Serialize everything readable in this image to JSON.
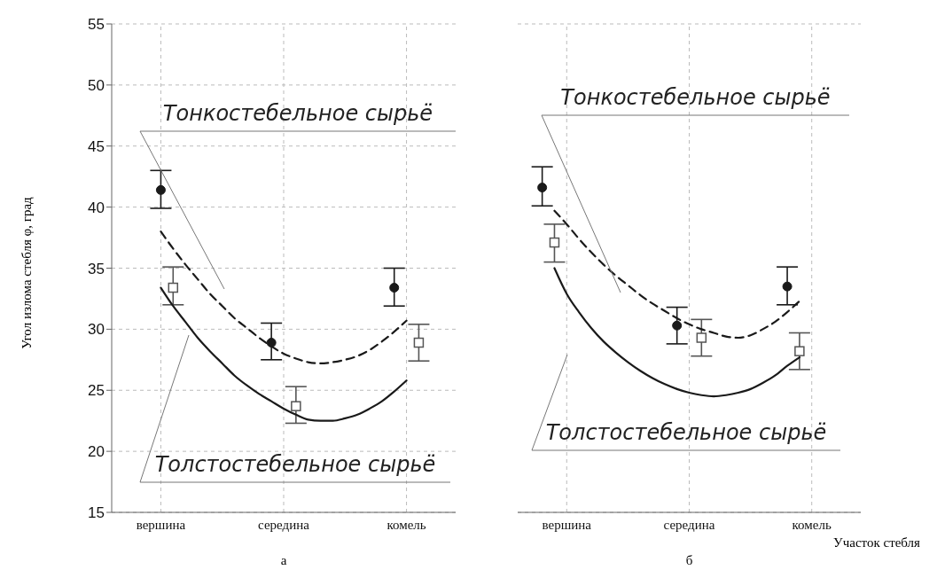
{
  "chart_data": [
    {
      "type": "scatter",
      "ylabel": "Угол излома стебля φ, град",
      "categories": [
        null,
        null,
        null,
        null,
        "вершина",
        null,
        null,
        null,
        null,
        null,
        null,
        null,
        null,
        null,
        "середина",
        null,
        null,
        null,
        null,
        null,
        null,
        null,
        null,
        null,
        "комель",
        null,
        null,
        null,
        null
      ],
      "ylim": [
        15,
        55
      ],
      "yticks": [
        15,
        20,
        25,
        30,
        35,
        40,
        45,
        50,
        55
      ],
      "grid": true,
      "series": [
        {
          "marker": "circle",
          "color": "#1a1a1a",
          "values": [
            null,
            null,
            null,
            null,
            41.4,
            null,
            null,
            null,
            null,
            null,
            null,
            null,
            null,
            28.9,
            null,
            null,
            null,
            null,
            null,
            null,
            null,
            null,
            null,
            33.4,
            null,
            null,
            null,
            null,
            null
          ],
          "errors": [
            null,
            null,
            null,
            null,
            [
              39.9,
              43.0
            ],
            null,
            null,
            null,
            null,
            null,
            null,
            null,
            null,
            [
              27.5,
              30.5
            ],
            null,
            null,
            null,
            null,
            null,
            null,
            null,
            null,
            null,
            [
              31.9,
              35.0
            ],
            null,
            null,
            null,
            null,
            null
          ]
        },
        {
          "marker": "square",
          "color": "#555555",
          "values": [
            null,
            null,
            null,
            null,
            null,
            33.4,
            null,
            null,
            null,
            null,
            null,
            null,
            null,
            null,
            null,
            23.7,
            null,
            null,
            null,
            null,
            null,
            null,
            null,
            null,
            null,
            28.9,
            null,
            null,
            null
          ],
          "errors": [
            null,
            null,
            null,
            null,
            null,
            [
              32.0,
              35.1
            ],
            null,
            null,
            null,
            null,
            null,
            null,
            null,
            null,
            null,
            [
              22.3,
              25.3
            ],
            null,
            null,
            null,
            null,
            null,
            null,
            null,
            null,
            null,
            [
              27.4,
              30.4
            ],
            null,
            null,
            null
          ]
        },
        {
          "type": "line",
          "line_style": "dashed",
          "color": "#1a1a1a",
          "values": [
            null,
            null,
            null,
            null,
            38.0,
            36.6,
            35.3,
            34.1,
            32.9,
            31.9,
            30.9,
            30.1,
            29.3,
            28.6,
            28.0,
            27.6,
            27.3,
            27.2,
            27.3,
            27.5,
            27.8,
            28.3,
            29.0,
            29.8,
            30.7,
            null,
            null,
            null,
            null
          ]
        },
        {
          "type": "line",
          "line_style": "solid",
          "color": "#1a1a1a",
          "values": [
            null,
            null,
            null,
            null,
            33.4,
            31.9,
            30.6,
            29.3,
            28.2,
            27.2,
            26.2,
            25.4,
            24.7,
            24.1,
            23.5,
            23.0,
            22.6,
            22.5,
            22.5,
            22.7,
            23.0,
            23.5,
            24.1,
            24.9,
            25.8,
            null,
            null,
            null,
            null
          ]
        }
      ],
      "annotations": [
        "Тонкостебельное сырьё",
        "Толстостебельное сырьё",
        "а"
      ]
    },
    {
      "type": "scatter",
      "xlabel": "Участок стебля",
      "categories": [
        null,
        null,
        null,
        null,
        "вершина",
        null,
        null,
        null,
        null,
        null,
        null,
        null,
        null,
        null,
        "середина",
        null,
        null,
        null,
        null,
        null,
        null,
        null,
        null,
        null,
        "комель",
        null,
        null,
        null,
        null
      ],
      "ylim": [
        15,
        55
      ],
      "yticks": [
        15,
        20,
        25,
        30,
        35,
        40,
        45,
        50,
        55
      ],
      "grid": true,
      "tick_labels": "x",
      "series": [
        {
          "marker": "circle",
          "color": "#1a1a1a",
          "values": [
            null,
            null,
            41.6,
            null,
            null,
            null,
            null,
            null,
            null,
            null,
            null,
            null,
            null,
            30.3,
            null,
            null,
            null,
            null,
            null,
            null,
            null,
            null,
            33.5,
            null,
            null,
            null,
            null,
            null,
            null
          ],
          "errors": [
            null,
            null,
            [
              40.1,
              43.3
            ],
            null,
            null,
            null,
            null,
            null,
            null,
            null,
            null,
            null,
            null,
            [
              28.8,
              31.8
            ],
            null,
            null,
            null,
            null,
            null,
            null,
            null,
            null,
            [
              32.0,
              35.1
            ],
            null,
            null,
            null,
            null,
            null,
            null
          ]
        },
        {
          "marker": "square",
          "color": "#555555",
          "values": [
            null,
            null,
            null,
            37.1,
            null,
            null,
            null,
            null,
            null,
            null,
            null,
            null,
            null,
            null,
            null,
            29.3,
            null,
            null,
            null,
            null,
            null,
            null,
            null,
            28.2,
            null,
            null,
            null,
            null,
            null
          ],
          "errors": [
            null,
            null,
            null,
            [
              35.5,
              38.6
            ],
            null,
            null,
            null,
            null,
            null,
            null,
            null,
            null,
            null,
            null,
            null,
            [
              27.8,
              30.8
            ],
            null,
            null,
            null,
            null,
            null,
            null,
            null,
            [
              26.7,
              29.7
            ],
            null,
            null,
            null,
            null,
            null
          ]
        },
        {
          "type": "line",
          "line_style": "dashed",
          "color": "#1a1a1a",
          "values": [
            null,
            null,
            null,
            39.7,
            38.6,
            37.4,
            36.3,
            35.3,
            34.4,
            33.6,
            32.8,
            32.1,
            31.5,
            30.9,
            30.4,
            30.0,
            29.7,
            29.4,
            29.3,
            29.5,
            30.0,
            30.6,
            31.4,
            32.3,
            null,
            null,
            null,
            null,
            null
          ]
        },
        {
          "type": "line",
          "line_style": "solid",
          "color": "#1a1a1a",
          "values": [
            null,
            null,
            null,
            35.0,
            32.9,
            31.4,
            30.1,
            29.0,
            28.1,
            27.3,
            26.6,
            26.0,
            25.5,
            25.1,
            24.8,
            24.6,
            24.5,
            24.6,
            24.8,
            25.1,
            25.6,
            26.2,
            27.0,
            27.7,
            null,
            null,
            null,
            null,
            null
          ]
        }
      ],
      "annotations": [
        "Тонкостебельное сырьё",
        "Толстостебельное сырьё",
        "б"
      ]
    }
  ]
}
